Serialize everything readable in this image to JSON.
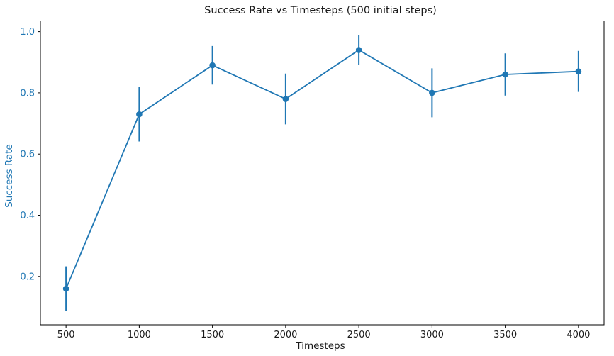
{
  "chart_data": {
    "type": "line",
    "title": "Success Rate vs Timesteps (500 initial steps)",
    "xlabel": "Timesteps",
    "ylabel": "Success Rate",
    "x": [
      500,
      1000,
      1500,
      2000,
      2500,
      3000,
      3500,
      4000
    ],
    "series": [
      {
        "name": "success_rate",
        "values": [
          0.16,
          0.73,
          0.89,
          0.78,
          0.94,
          0.8,
          0.86,
          0.87
        ],
        "yerr": [
          0.073,
          0.089,
          0.063,
          0.083,
          0.048,
          0.08,
          0.069,
          0.067
        ]
      }
    ],
    "xticks": [
      500,
      1000,
      1500,
      2000,
      2500,
      3000,
      3500,
      4000
    ],
    "yticks": [
      0.2,
      0.4,
      0.6,
      0.8,
      1.0
    ],
    "xlim": [
      325,
      4175
    ],
    "ylim": [
      0.042,
      1.035
    ],
    "grid": false,
    "legend": "none",
    "error_bars": true,
    "marker": "circle",
    "line_color": "#1f77b4",
    "ylabel_color": "#1f77b4",
    "ytick_color": "#1f77b4",
    "xtick_color": "#1a1a1a",
    "title_color": "#1a1a1a",
    "spine_color": "#000000"
  }
}
